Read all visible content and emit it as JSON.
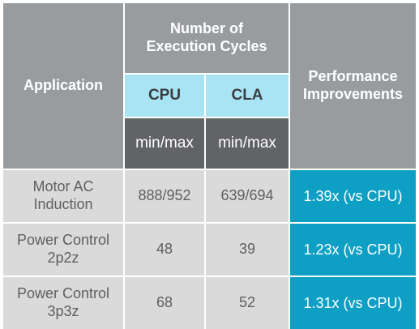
{
  "header": {
    "application": "Application",
    "cycles": "Number of Execution Cycles",
    "cpu": "CPU",
    "cla": "CLA",
    "cpu_unit": "min/max",
    "cla_unit": "min/max",
    "performance": "Performance Improvements"
  },
  "rows": [
    {
      "application": "Motor AC Induction",
      "cpu": "888/952",
      "cla": "639/694",
      "performance": "1.39x (vs CPU)"
    },
    {
      "application": "Power Control 2p2z",
      "cpu": "48",
      "cla": "39",
      "performance": "1.23x (vs CPU)"
    },
    {
      "application": "Power Control 3p3z",
      "cpu": "68",
      "cla": "52",
      "performance": "1.31x (vs CPU)"
    }
  ],
  "colors": {
    "header_gray": "#999c9f",
    "header_dark": "#616366",
    "header_light_blue": "#a8e4f4",
    "body_gray": "#dadadb",
    "accent_blue": "#0ea0c4"
  }
}
